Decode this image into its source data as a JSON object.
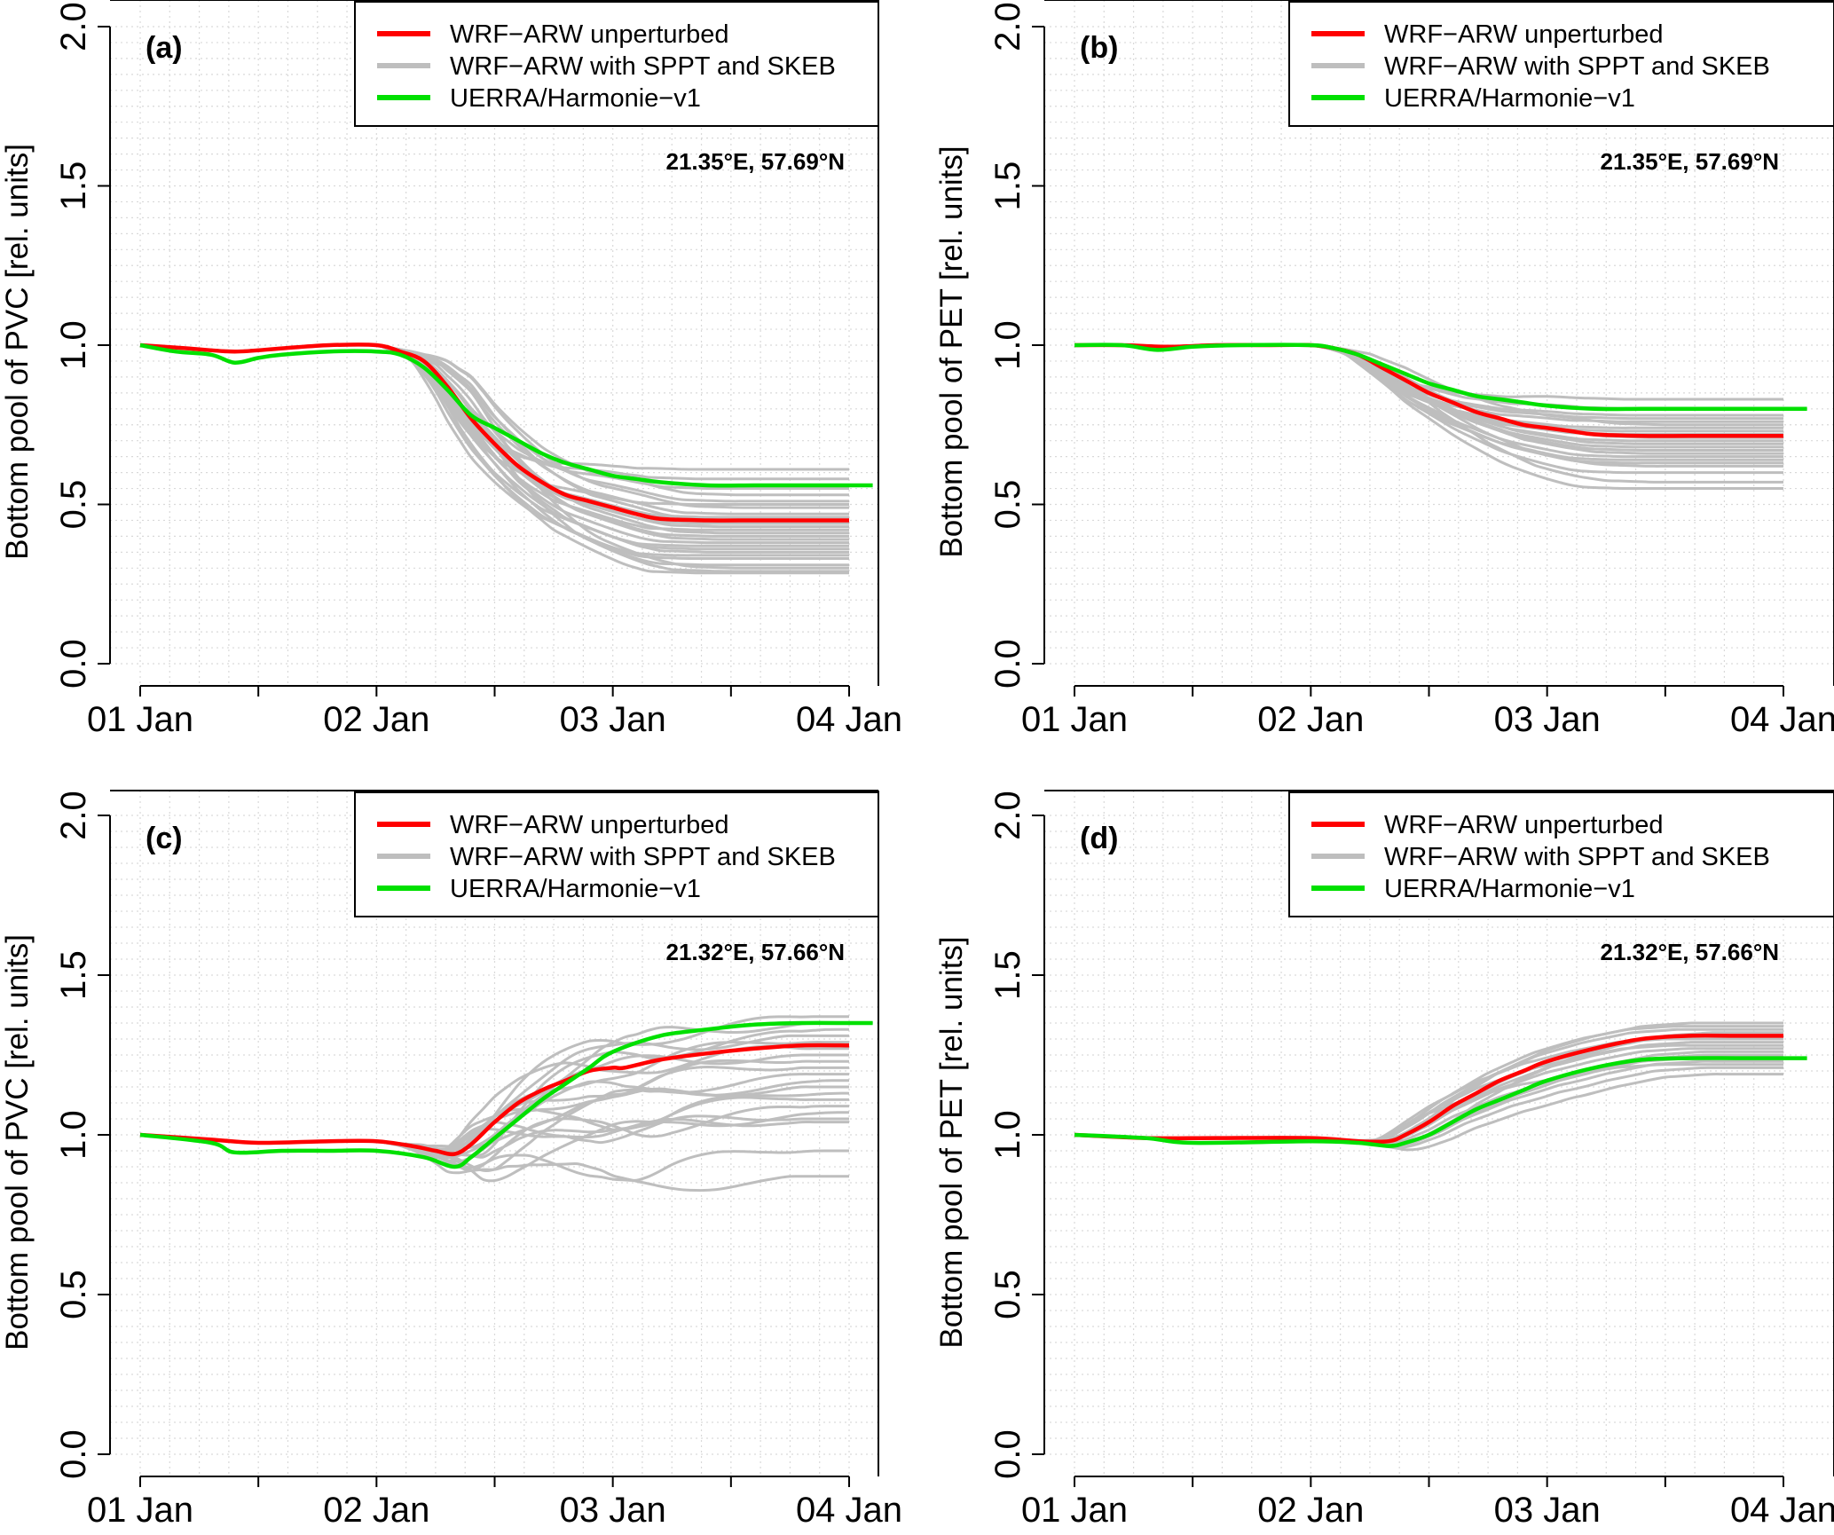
{
  "chart_data": [
    {
      "type": "line",
      "panel_label": "(a)",
      "title": "",
      "annotation": "21.35°E, 57.69°N",
      "xlabel": "",
      "ylabel": "Bottom pool of PVC [rel. units]",
      "x_tick_labels": [
        "01 Jan",
        "02 Jan",
        "03 Jan",
        "04 Jan"
      ],
      "y_tick_labels": [
        "0.0",
        "0.5",
        "1.0",
        "1.5",
        "2.0"
      ],
      "xlim_days": [
        0,
        3.0
      ],
      "ylim": [
        0,
        2.0
      ],
      "grid": true,
      "legend": {
        "position": "top-right",
        "entries": [
          "WRF−ARW unperturbed",
          "WRF−ARW with SPPT and SKEB",
          "UERRA/Harmonie−v1"
        ]
      },
      "series": [
        {
          "name": "WRF−ARW unperturbed",
          "color": "#ff0000",
          "x": [
            0,
            0.2,
            0.4,
            0.6,
            0.8,
            1.0,
            1.1,
            1.2,
            1.3,
            1.4,
            1.5,
            1.6,
            1.7,
            1.8,
            1.9,
            2.0,
            2.1,
            2.2,
            2.4,
            2.6,
            2.8,
            3.0
          ],
          "values": [
            1.0,
            0.99,
            0.98,
            0.99,
            1.0,
            1.0,
            0.98,
            0.95,
            0.87,
            0.77,
            0.69,
            0.62,
            0.57,
            0.53,
            0.51,
            0.49,
            0.47,
            0.455,
            0.45,
            0.45,
            0.45,
            0.45
          ]
        },
        {
          "name": "UERRA/Harmonie−v1",
          "color": "#00e000",
          "x": [
            0,
            0.15,
            0.3,
            0.4,
            0.5,
            0.6,
            0.8,
            1.0,
            1.1,
            1.2,
            1.3,
            1.4,
            1.5,
            1.6,
            1.7,
            1.8,
            1.9,
            2.0,
            2.1,
            2.2,
            2.4,
            2.6,
            2.8,
            3.0,
            3.1
          ],
          "values": [
            1.0,
            0.98,
            0.97,
            0.945,
            0.96,
            0.97,
            0.98,
            0.98,
            0.97,
            0.93,
            0.86,
            0.78,
            0.74,
            0.7,
            0.66,
            0.63,
            0.61,
            0.59,
            0.58,
            0.57,
            0.56,
            0.56,
            0.56,
            0.56,
            0.56
          ]
        }
      ],
      "ensemble": {
        "name": "WRF−ARW with SPPT and SKEB",
        "color": "#bebebe",
        "final_values": [
          0.61,
          0.58,
          0.55,
          0.53,
          0.51,
          0.5,
          0.49,
          0.47,
          0.46,
          0.45,
          0.44,
          0.43,
          0.42,
          0.41,
          0.4,
          0.39,
          0.38,
          0.37,
          0.36,
          0.35,
          0.34,
          0.33,
          0.31,
          0.3,
          0.29,
          0.285
        ],
        "x_end": 3.0
      }
    },
    {
      "type": "line",
      "panel_label": "(b)",
      "title": "",
      "annotation": "21.35°E, 57.69°N",
      "xlabel": "",
      "ylabel": "Bottom pool of PET [rel. units]",
      "x_tick_labels": [
        "01 Jan",
        "02 Jan",
        "03 Jan",
        "04 Jan"
      ],
      "y_tick_labels": [
        "0.0",
        "0.5",
        "1.0",
        "1.5",
        "2.0"
      ],
      "xlim_days": [
        0,
        3.0
      ],
      "ylim": [
        0,
        2.0
      ],
      "grid": true,
      "legend": {
        "position": "top-right",
        "entries": [
          "WRF−ARW unperturbed",
          "WRF−ARW with SPPT and SKEB",
          "UERRA/Harmonie−v1"
        ]
      },
      "series": [
        {
          "name": "WRF−ARW unperturbed",
          "color": "#ff0000",
          "x": [
            0,
            0.2,
            0.4,
            0.6,
            0.8,
            1.0,
            1.1,
            1.2,
            1.3,
            1.4,
            1.5,
            1.6,
            1.7,
            1.8,
            1.9,
            2.0,
            2.1,
            2.2,
            2.4,
            2.6,
            2.8,
            3.0
          ],
          "values": [
            1.0,
            1.0,
            0.995,
            1.0,
            1.0,
            1.0,
            0.99,
            0.97,
            0.93,
            0.89,
            0.85,
            0.82,
            0.79,
            0.77,
            0.75,
            0.74,
            0.73,
            0.72,
            0.715,
            0.715,
            0.715,
            0.715
          ]
        },
        {
          "name": "UERRA/Harmonie−v1",
          "color": "#00e000",
          "x": [
            0,
            0.2,
            0.35,
            0.5,
            0.7,
            1.0,
            1.1,
            1.2,
            1.3,
            1.4,
            1.5,
            1.6,
            1.7,
            1.8,
            1.9,
            2.0,
            2.2,
            2.4,
            2.6,
            2.8,
            3.0,
            3.1
          ],
          "values": [
            1.0,
            1.0,
            0.985,
            0.995,
            1.0,
            1.0,
            0.99,
            0.97,
            0.94,
            0.91,
            0.88,
            0.86,
            0.84,
            0.83,
            0.82,
            0.81,
            0.8,
            0.8,
            0.8,
            0.8,
            0.8,
            0.8
          ]
        }
      ],
      "ensemble": {
        "name": "WRF−ARW with SPPT and SKEB",
        "color": "#bebebe",
        "final_values": [
          0.83,
          0.8,
          0.78,
          0.77,
          0.76,
          0.75,
          0.74,
          0.73,
          0.72,
          0.71,
          0.7,
          0.69,
          0.68,
          0.67,
          0.66,
          0.65,
          0.64,
          0.63,
          0.62,
          0.6,
          0.57,
          0.55
        ],
        "x_end": 3.0
      }
    },
    {
      "type": "line",
      "panel_label": "(c)",
      "title": "",
      "annotation": "21.32°E, 57.66°N",
      "xlabel": "",
      "ylabel": "Bottom pool of PVC [rel. units]",
      "x_tick_labels": [
        "01 Jan",
        "02 Jan",
        "03 Jan",
        "04 Jan"
      ],
      "y_tick_labels": [
        "0.0",
        "0.5",
        "1.0",
        "1.5",
        "2.0"
      ],
      "xlim_days": [
        0,
        3.0
      ],
      "ylim": [
        0,
        2.0
      ],
      "grid": true,
      "legend": {
        "position": "top-right",
        "entries": [
          "WRF−ARW unperturbed",
          "WRF−ARW with SPPT and SKEB",
          "UERRA/Harmonie−v1"
        ]
      },
      "series": [
        {
          "name": "WRF−ARW unperturbed",
          "color": "#ff0000",
          "x": [
            0,
            0.3,
            0.5,
            0.8,
            1.0,
            1.15,
            1.25,
            1.33,
            1.4,
            1.5,
            1.6,
            1.7,
            1.8,
            1.9,
            2.0,
            2.05,
            2.2,
            2.4,
            2.6,
            2.8,
            3.0
          ],
          "values": [
            1.0,
            0.985,
            0.975,
            0.98,
            0.98,
            0.965,
            0.95,
            0.94,
            0.97,
            1.04,
            1.1,
            1.14,
            1.17,
            1.2,
            1.21,
            1.21,
            1.235,
            1.255,
            1.27,
            1.28,
            1.28
          ]
        },
        {
          "name": "UERRA/Harmonie−v1",
          "color": "#00e000",
          "x": [
            0,
            0.3,
            0.4,
            0.6,
            0.8,
            1.0,
            1.2,
            1.33,
            1.4,
            1.5,
            1.6,
            1.7,
            1.8,
            1.9,
            2.0,
            2.2,
            2.4,
            2.6,
            2.8,
            3.0,
            3.1
          ],
          "values": [
            1.0,
            0.975,
            0.945,
            0.95,
            0.95,
            0.95,
            0.93,
            0.9,
            0.93,
            0.99,
            1.05,
            1.11,
            1.16,
            1.21,
            1.26,
            1.31,
            1.33,
            1.345,
            1.35,
            1.35,
            1.35
          ]
        }
      ],
      "ensemble": {
        "name": "WRF−ARW with SPPT and SKEB",
        "color": "#bebebe",
        "final_values": [
          1.37,
          1.35,
          1.33,
          1.31,
          1.29,
          1.27,
          1.25,
          1.23,
          1.21,
          1.19,
          1.17,
          1.15,
          1.13,
          1.11,
          1.09,
          1.07,
          1.05,
          1.04,
          0.95,
          0.87
        ],
        "x_end": 3.0
      }
    },
    {
      "type": "line",
      "panel_label": "(d)",
      "title": "",
      "annotation": "21.32°E, 57.66°N",
      "xlabel": "",
      "ylabel": "Bottom pool of PET [rel. units]",
      "x_tick_labels": [
        "01 Jan",
        "02 Jan",
        "03 Jan",
        "04 Jan"
      ],
      "y_tick_labels": [
        "0.0",
        "0.5",
        "1.0",
        "1.5",
        "2.0"
      ],
      "xlim_days": [
        0,
        3.0
      ],
      "ylim": [
        0,
        2.0
      ],
      "grid": true,
      "legend": {
        "position": "top-right",
        "entries": [
          "WRF−ARW unperturbed",
          "WRF−ARW with SPPT and SKEB",
          "UERRA/Harmonie−v1"
        ]
      },
      "series": [
        {
          "name": "WRF−ARW unperturbed",
          "color": "#ff0000",
          "x": [
            0,
            0.3,
            0.6,
            1.0,
            1.2,
            1.33,
            1.4,
            1.5,
            1.6,
            1.7,
            1.8,
            1.9,
            2.0,
            2.2,
            2.4,
            2.6,
            2.8,
            3.0
          ],
          "values": [
            1.0,
            0.99,
            0.99,
            0.99,
            0.98,
            0.98,
            1.0,
            1.04,
            1.09,
            1.13,
            1.17,
            1.2,
            1.23,
            1.27,
            1.3,
            1.31,
            1.31,
            1.31
          ]
        },
        {
          "name": "UERRA/Harmonie−v1",
          "color": "#00e000",
          "x": [
            0,
            0.3,
            0.5,
            1.0,
            1.2,
            1.33,
            1.4,
            1.5,
            1.6,
            1.7,
            1.8,
            1.9,
            2.0,
            2.2,
            2.4,
            2.6,
            2.8,
            3.0,
            3.1
          ],
          "values": [
            1.0,
            0.99,
            0.975,
            0.98,
            0.975,
            0.965,
            0.975,
            1.0,
            1.04,
            1.08,
            1.11,
            1.14,
            1.17,
            1.21,
            1.235,
            1.24,
            1.24,
            1.24,
            1.24
          ]
        }
      ],
      "ensemble": {
        "name": "WRF−ARW with SPPT and SKEB",
        "color": "#bebebe",
        "final_values": [
          1.35,
          1.34,
          1.33,
          1.32,
          1.31,
          1.3,
          1.29,
          1.28,
          1.27,
          1.26,
          1.25,
          1.24,
          1.23,
          1.22,
          1.21,
          1.19
        ],
        "x_end": 3.0
      }
    }
  ]
}
